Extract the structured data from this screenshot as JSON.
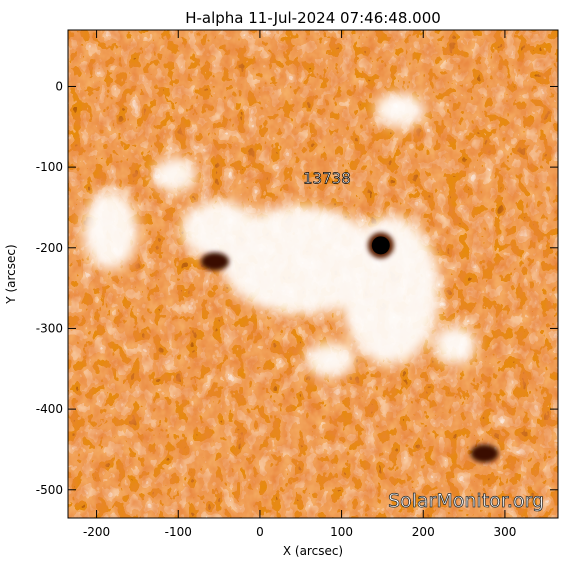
{
  "chart_data": {
    "type": "heatmap",
    "title": "H-alpha 11-Jul-2024 07:46:48.000",
    "xlabel": "X (arcsec)",
    "ylabel": "Y (arcsec)",
    "xlim": [
      -235,
      365
    ],
    "ylim": [
      -535,
      70
    ],
    "xticks": [
      -200,
      -100,
      0,
      100,
      200,
      300
    ],
    "yticks": [
      0,
      -100,
      -200,
      -300,
      -400,
      -500
    ],
    "colormap": [
      "#000000",
      "#6a1a00",
      "#c84400",
      "#f07a28",
      "#f6b478",
      "#ffffff"
    ],
    "annotations": [
      {
        "text": "13738",
        "x": 82,
        "y": -120
      }
    ],
    "features": [
      {
        "kind": "sunspot",
        "x": 148,
        "y": -197
      },
      {
        "kind": "dark-feature",
        "x": 275,
        "y": -455
      },
      {
        "kind": "dark-feature",
        "x": -55,
        "y": -217
      }
    ],
    "watermark": "SolarMonitor.org"
  }
}
